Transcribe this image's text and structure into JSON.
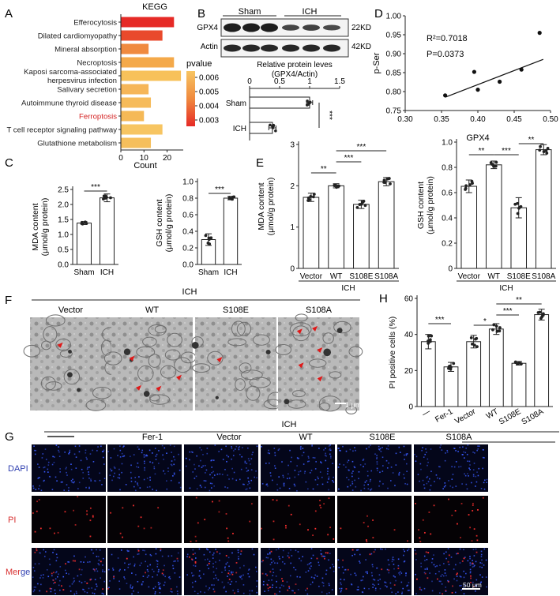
{
  "panels": {
    "A": {
      "letter": "A",
      "title": "KEGG",
      "xlabel": "Count",
      "x_ticks": [
        "0",
        "10",
        "20"
      ],
      "terms": [
        {
          "label": "Efferocytosis",
          "count": 23,
          "color": "#e62a26",
          "highlight": false
        },
        {
          "label": "Dilated cardiomyopathy",
          "count": 18,
          "color": "#e94a2c",
          "highlight": false
        },
        {
          "label": "Mineral absorption",
          "count": 12,
          "color": "#f08a3f",
          "highlight": false
        },
        {
          "label": "Necroptosis",
          "count": 23,
          "color": "#f4a94a",
          "highlight": false
        },
        {
          "label": "Kaposi sarcoma-associated",
          "label2": "herpesvirus infection",
          "count": 26,
          "color": "#f7c15a",
          "highlight": false
        },
        {
          "label": "Salivary secretion",
          "count": 12,
          "color": "#f6b658",
          "highlight": false
        },
        {
          "label": "Autoimmune thyroid disease",
          "count": 13,
          "color": "#f6bb5b",
          "highlight": false
        },
        {
          "label": "Ferroptosis",
          "count": 10,
          "color": "#f5b957",
          "highlight": true
        },
        {
          "label": "T cell receptor signaling pathway",
          "count": 18,
          "color": "#f7c562",
          "highlight": false
        },
        {
          "label": "Glutathione metabolism",
          "count": 13,
          "color": "#f6bf5c",
          "highlight": false
        }
      ],
      "legend": {
        "title": "pvalue",
        "ticks": [
          "0.006",
          "0.005",
          "0.004",
          "0.003"
        ]
      }
    },
    "B": {
      "letter": "B",
      "group_labels": [
        "Sham",
        "ICH"
      ],
      "bands": [
        {
          "label": "GPX4",
          "size": "22KD"
        },
        {
          "label": "Actin",
          "size": "42KD"
        }
      ],
      "chart_title_1": "Relative protein leves",
      "chart_title_2": "(GPX4/Actin)",
      "x_ticks": [
        "0",
        "0.5",
        "1",
        "1.5"
      ],
      "bars": [
        {
          "label": "Sham",
          "value": 1.0,
          "sd": 0.05
        },
        {
          "label": "ICH",
          "value": 0.38,
          "sd": 0.06
        }
      ],
      "sig": "***"
    },
    "C": {
      "letter": "C",
      "charts": [
        {
          "ylabel1": "MDA content",
          "ylabel2": "(μmol/g protein)",
          "y_ticks": [
            "0.0",
            "0.5",
            "1.0",
            "1.5",
            "2.0",
            "2.5"
          ],
          "groups": [
            "Sham",
            "ICH"
          ],
          "values": [
            1.38,
            2.22
          ],
          "sd": [
            0.05,
            0.13
          ],
          "sig": "***"
        },
        {
          "ylabel1": "GSH content",
          "ylabel2": "(μmol/g protein)",
          "y_ticks": [
            "0.0",
            "0.2",
            "0.4",
            "0.6",
            "0.8",
            "1.0"
          ],
          "groups": [
            "Sham",
            "ICH"
          ],
          "values": [
            0.3,
            0.8
          ],
          "sd": [
            0.07,
            0.02
          ],
          "sig": "***"
        }
      ]
    },
    "D": {
      "letter": "D",
      "r2": "R²=0.7018",
      "p": "P=0.0373",
      "xlabel": "GPX4",
      "ylabel": "p-Ser",
      "x_ticks": [
        "0.30",
        "0.35",
        "0.40",
        "0.45",
        "0.50"
      ],
      "y_ticks": [
        "0.75",
        "0.80",
        "0.85",
        "0.90",
        "0.95",
        "1.00"
      ],
      "points": [
        {
          "x": 0.355,
          "y": 0.79
        },
        {
          "x": 0.395,
          "y": 0.852
        },
        {
          "x": 0.4,
          "y": 0.805
        },
        {
          "x": 0.43,
          "y": 0.826
        },
        {
          "x": 0.46,
          "y": 0.858
        },
        {
          "x": 0.485,
          "y": 0.955
        }
      ],
      "fit": [
        {
          "x": 0.355,
          "y": 0.785
        },
        {
          "x": 0.49,
          "y": 0.885
        }
      ]
    },
    "E": {
      "letter": "E",
      "group_label": "ICH",
      "charts": [
        {
          "ylabel1": "MDA content",
          "ylabel2": "(μmol/g protein)",
          "y_ticks": [
            "0",
            "1",
            "2",
            "3"
          ],
          "groups": [
            "Vector",
            "WT",
            "S108E",
            "S108A"
          ],
          "values": [
            1.72,
            2.0,
            1.55,
            2.1
          ],
          "sd": [
            0.1,
            0.05,
            0.1,
            0.1
          ],
          "sig": [
            {
              "a": 0,
              "b": 1,
              "label": "**"
            },
            {
              "a": 1,
              "b": 2,
              "label": "***"
            },
            {
              "a": 1,
              "b": 3,
              "label": "***"
            }
          ]
        },
        {
          "ylabel1": "GSH content",
          "ylabel2": "(μmol/g protein)",
          "y_ticks": [
            "0",
            "0.2",
            "0.4",
            "0.6",
            "0.8",
            "1.0"
          ],
          "groups": [
            "Vector",
            "WT",
            "S108E",
            "S108A"
          ],
          "values": [
            0.65,
            0.82,
            0.48,
            0.94
          ],
          "sd": [
            0.05,
            0.03,
            0.08,
            0.04
          ],
          "sig": [
            {
              "a": 0,
              "b": 1,
              "label": "**"
            },
            {
              "a": 1,
              "b": 2,
              "label": "***"
            },
            {
              "a": 2,
              "b": 3,
              "label": "**"
            }
          ]
        }
      ]
    },
    "F": {
      "letter": "F",
      "group_label": "ICH",
      "columns": [
        "Vector",
        "WT",
        "S108E",
        "S108A"
      ],
      "scale": "1 μm"
    },
    "G": {
      "letter": "G",
      "group_label": "ICH",
      "columns": [
        "—",
        "Fer-1",
        "Vector",
        "WT",
        "S108E",
        "S108A"
      ],
      "rows": [
        {
          "label": "DAPI",
          "color": "#2f3fb0"
        },
        {
          "label": "PI",
          "color": "#d83030"
        },
        {
          "label": "Merge",
          "label_a": "Mer",
          "label_b": "ge",
          "color": "#d83030",
          "color_b": "#2f3fb0"
        }
      ],
      "scale": "50 μm"
    },
    "H": {
      "letter": "H",
      "ylabel": "PI positive cells (%)",
      "y_ticks": [
        "0",
        "20",
        "40",
        "60"
      ],
      "groups": [
        "—",
        "Fer-1",
        "Vector",
        "WT",
        "S108E",
        "S108A"
      ],
      "values": [
        36,
        22,
        36,
        43,
        24,
        51
      ],
      "sd": [
        4,
        2.5,
        3.5,
        3,
        1,
        3
      ],
      "sig": [
        {
          "a": 0,
          "b": 1,
          "label": "***"
        },
        {
          "a": 2,
          "b": 3,
          "label": "*"
        },
        {
          "a": 3,
          "b": 4,
          "label": "***"
        },
        {
          "a": 3,
          "b": 5,
          "label": "**"
        }
      ],
      "group_label": "ICH"
    }
  }
}
